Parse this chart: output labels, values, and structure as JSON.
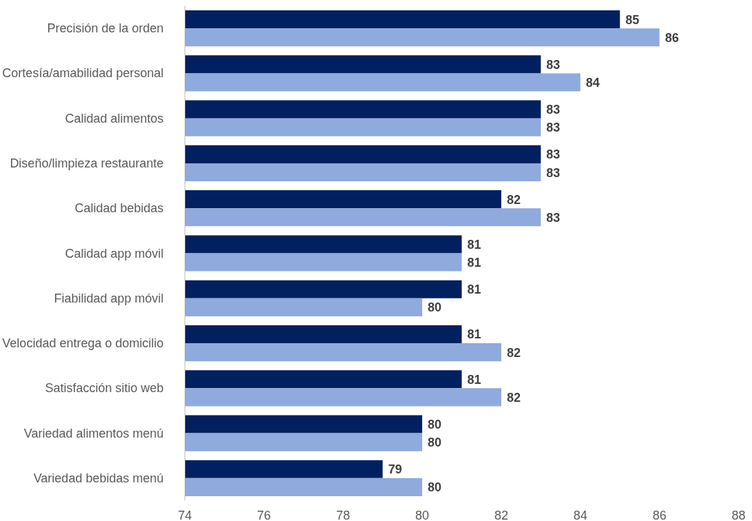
{
  "chart_data": {
    "type": "bar",
    "orientation": "horizontal",
    "categories": [
      "Precisión de la orden",
      "Cortesía/amabilidad personal",
      "Calidad alimentos",
      "Diseño/limpieza restaurante",
      "Calidad bebidas",
      "Calidad app móvil",
      "Fiabilidad app móvil",
      "Velocidad entrega o domicilio",
      "Satisfacción sitio web",
      "Variedad alimentos menú",
      "Variedad bebidas menú"
    ],
    "series": [
      {
        "color": "#002060",
        "values": [
          85,
          83,
          83,
          83,
          82,
          81,
          81,
          81,
          81,
          80,
          79
        ]
      },
      {
        "color": "#8faadc",
        "values": [
          86,
          84,
          83,
          83,
          83,
          81,
          80,
          82,
          82,
          80,
          80
        ]
      }
    ],
    "xlim": [
      74,
      88
    ],
    "xticks": [
      74,
      76,
      78,
      80,
      82,
      84,
      86,
      88
    ],
    "data_labels": true
  }
}
